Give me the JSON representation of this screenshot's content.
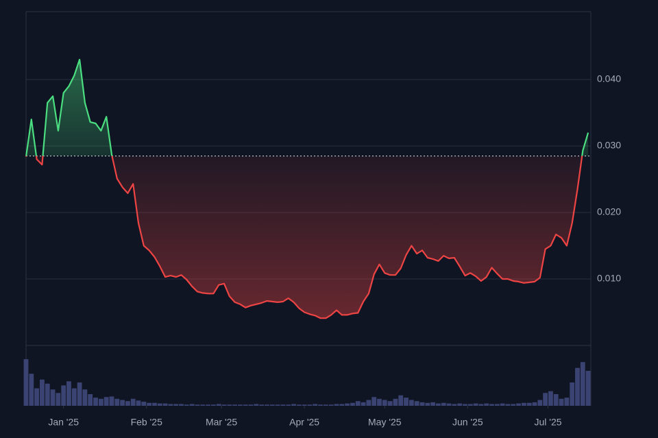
{
  "chart_data": {
    "type": "line",
    "x": [
      -14,
      -12,
      -10,
      -8,
      -6,
      -4,
      -2,
      0,
      2,
      4,
      6,
      8,
      10,
      12,
      14,
      16,
      18,
      20,
      22,
      24,
      26,
      28,
      30,
      32,
      34,
      36,
      38,
      40,
      42,
      44,
      46,
      48,
      50,
      52,
      54,
      56,
      58,
      60,
      62,
      64,
      66,
      68,
      70,
      72,
      74,
      76,
      78,
      80,
      82,
      84,
      86,
      88,
      90,
      92,
      94,
      96,
      98,
      100,
      102,
      104,
      106,
      108,
      110,
      112,
      114,
      116,
      118,
      120,
      122,
      124,
      126,
      128,
      130,
      132,
      134,
      136,
      138,
      140,
      142,
      144,
      146,
      148,
      150,
      152,
      154,
      156,
      158,
      160,
      162,
      164,
      166,
      168,
      170,
      172,
      174,
      176,
      178,
      180,
      182,
      184,
      186,
      188,
      190,
      192,
      194,
      196
    ],
    "values": [
      0.0284,
      0.034,
      0.028,
      0.0272,
      0.0365,
      0.0375,
      0.0323,
      0.038,
      0.039,
      0.0406,
      0.043,
      0.0365,
      0.0336,
      0.0334,
      0.0323,
      0.0344,
      0.0287,
      0.0251,
      0.0238,
      0.0229,
      0.0243,
      0.0184,
      0.015,
      0.0143,
      0.0133,
      0.0119,
      0.0103,
      0.0105,
      0.0103,
      0.0106,
      0.0099,
      0.0089,
      0.0081,
      0.0079,
      0.0078,
      0.0078,
      0.0091,
      0.0093,
      0.0074,
      0.0065,
      0.0062,
      0.0057,
      0.006,
      0.0062,
      0.0064,
      0.0067,
      0.0066,
      0.0065,
      0.0066,
      0.0071,
      0.0065,
      0.0056,
      0.005,
      0.0047,
      0.0045,
      0.0041,
      0.0041,
      0.0046,
      0.0053,
      0.0046,
      0.0046,
      0.0048,
      0.0049,
      0.0066,
      0.0078,
      0.0107,
      0.0122,
      0.0109,
      0.0106,
      0.0106,
      0.0116,
      0.0136,
      0.015,
      0.0138,
      0.0143,
      0.0132,
      0.013,
      0.0127,
      0.0135,
      0.0131,
      0.0132,
      0.0119,
      0.0105,
      0.0109,
      0.0104,
      0.0097,
      0.0103,
      0.0117,
      0.0108,
      0.01,
      0.01,
      0.0097,
      0.0096,
      0.0094,
      0.0095,
      0.0096,
      0.0102,
      0.0145,
      0.015,
      0.0167,
      0.0162,
      0.015,
      0.0184,
      0.0235,
      0.0293,
      0.032
    ],
    "volume": [
      80,
      55,
      30,
      45,
      38,
      28,
      22,
      35,
      42,
      30,
      40,
      28,
      20,
      14,
      12,
      15,
      16,
      12,
      10,
      8,
      12,
      9,
      7,
      5,
      5,
      4,
      4,
      3,
      3,
      3,
      2,
      3,
      2,
      2,
      2,
      2,
      3,
      2,
      2,
      2,
      2,
      2,
      2,
      3,
      2,
      2,
      2,
      2,
      2,
      2,
      3,
      2,
      2,
      2,
      3,
      2,
      2,
      2,
      3,
      3,
      4,
      5,
      8,
      6,
      10,
      15,
      12,
      10,
      8,
      12,
      18,
      14,
      10,
      8,
      6,
      5,
      6,
      4,
      5,
      4,
      3,
      4,
      3,
      3,
      4,
      3,
      4,
      3,
      3,
      4,
      3,
      3,
      4,
      5,
      5,
      6,
      10,
      22,
      25,
      20,
      12,
      14,
      40,
      65,
      75,
      60
    ],
    "volume_ylim": [
      0,
      100
    ],
    "baseline": 0.0285,
    "xlim": [
      -14,
      197
    ],
    "xticks": [
      {
        "value": 0,
        "label": "Jan '25"
      },
      {
        "value": 31,
        "label": "Feb '25"
      },
      {
        "value": 59,
        "label": "Mar '25"
      },
      {
        "value": 90,
        "label": "Apr '25"
      },
      {
        "value": 120,
        "label": "May '25"
      },
      {
        "value": 151,
        "label": "Jun '25"
      },
      {
        "value": 181,
        "label": "Jul '25"
      }
    ],
    "ylim": [
      0,
      0.05
    ],
    "yticks": [
      {
        "value": 0.01,
        "label": "0.010"
      },
      {
        "value": 0.02,
        "label": "0.020"
      },
      {
        "value": 0.03,
        "label": "0.030"
      },
      {
        "value": 0.04,
        "label": "0.040"
      }
    ],
    "grid": true,
    "up_color": "#4ade80",
    "down_color": "#ef4444",
    "volume_color": "#3b4373"
  }
}
